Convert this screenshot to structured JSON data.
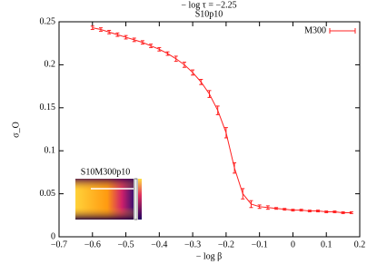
{
  "chart_data": {
    "type": "line",
    "title": "− log τ = −2.25",
    "subtitle": "S10p10",
    "x_label": "− log β",
    "y_label": "σ_O",
    "inset_title": "S10M300p10",
    "legend_position": "upper right",
    "x": [
      -0.6,
      -0.575,
      -0.55,
      -0.525,
      -0.5,
      -0.475,
      -0.45,
      -0.425,
      -0.4,
      -0.375,
      -0.35,
      -0.325,
      -0.3,
      -0.275,
      -0.25,
      -0.225,
      -0.2,
      -0.175,
      -0.15,
      -0.125,
      -0.1,
      -0.075,
      -0.05,
      -0.025,
      0,
      0.025,
      0.05,
      0.075,
      0.1,
      0.125,
      0.15,
      0.175
    ],
    "series": [
      {
        "name": "M300",
        "color": "#ff2020",
        "values": [
          0.243,
          0.241,
          0.238,
          0.235,
          0.232,
          0.229,
          0.226,
          0.222,
          0.218,
          0.213,
          0.207,
          0.2,
          0.191,
          0.18,
          0.166,
          0.147,
          0.121,
          0.08,
          0.05,
          0.038,
          0.035,
          0.034,
          0.033,
          0.032,
          0.031,
          0.031,
          0.03,
          0.03,
          0.029,
          0.029,
          0.028,
          0.028
        ],
        "errors": [
          0.002,
          0.002,
          0.002,
          0.002,
          0.002,
          0.002,
          0.002,
          0.002,
          0.002,
          0.002,
          0.003,
          0.003,
          0.003,
          0.003,
          0.004,
          0.005,
          0.006,
          0.006,
          0.006,
          0.004,
          0.002,
          0.002,
          0.001,
          0.001,
          0.001,
          0.001,
          0.001,
          0.001,
          0.001,
          0.001,
          0.001,
          0.001
        ]
      }
    ],
    "xlim": [
      -0.7,
      0.2
    ],
    "ylim": [
      0,
      0.25
    ],
    "xticks": [
      {
        "value": -0.7,
        "label": "−0.7"
      },
      {
        "value": -0.6,
        "label": "−0.6"
      },
      {
        "value": -0.5,
        "label": "−0.5"
      },
      {
        "value": -0.4,
        "label": "−0.4"
      },
      {
        "value": -0.3,
        "label": "−0.3"
      },
      {
        "value": -0.2,
        "label": "−0.2"
      },
      {
        "value": -0.1,
        "label": "−0.1"
      },
      0,
      0.1,
      0.2
    ],
    "yticks": [
      0,
      0.05,
      0.1,
      0.15,
      0.2,
      0.25
    ]
  }
}
